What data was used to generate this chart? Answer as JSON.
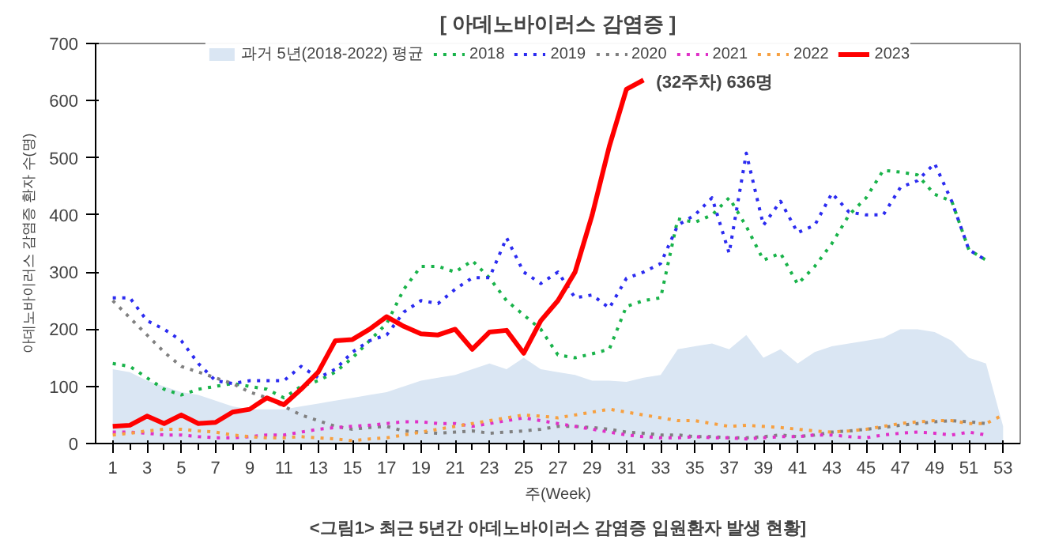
{
  "chart_data": {
    "type": "line",
    "title": "[ 아데노바이러스 감염증 ]",
    "ylabel": "아데노바이러스 감염증 환자 수(명)",
    "xlabel": "주(Week)",
    "annotations": [
      {
        "text": "(32주차) 636명",
        "x": 32,
        "y": 636
      },
      "<그림1> 최근 5년간 아데노바이러스 감염증 입원환자 발생 현황]"
    ],
    "x": [
      1,
      2,
      3,
      4,
      5,
      6,
      7,
      8,
      9,
      10,
      11,
      12,
      13,
      14,
      15,
      16,
      17,
      18,
      19,
      20,
      21,
      22,
      23,
      24,
      25,
      26,
      27,
      28,
      29,
      30,
      31,
      32,
      33,
      34,
      35,
      36,
      37,
      38,
      39,
      40,
      41,
      42,
      43,
      44,
      45,
      46,
      47,
      48,
      49,
      50,
      51,
      52,
      53
    ],
    "xlim": [
      0,
      54
    ],
    "xticks": [
      1,
      3,
      5,
      7,
      9,
      11,
      13,
      15,
      17,
      19,
      21,
      23,
      25,
      27,
      29,
      31,
      33,
      35,
      37,
      39,
      41,
      43,
      45,
      47,
      49,
      51,
      53
    ],
    "ylim": [
      0,
      700
    ],
    "yticks": [
      0,
      100,
      200,
      300,
      400,
      500,
      600,
      700
    ],
    "grid": false,
    "legend": "top",
    "series": [
      {
        "name": "과거 5년(2018-2022) 평균",
        "type": "area",
        "color": "#dae6f3",
        "values": [
          130,
          125,
          110,
          100,
          90,
          85,
          75,
          65,
          60,
          60,
          60,
          65,
          70,
          75,
          80,
          85,
          90,
          100,
          110,
          115,
          120,
          130,
          140,
          130,
          150,
          130,
          125,
          120,
          110,
          110,
          108,
          115,
          120,
          165,
          170,
          175,
          165,
          190,
          150,
          165,
          140,
          160,
          170,
          175,
          180,
          185,
          200,
          200,
          195,
          180,
          150,
          140,
          30
        ]
      },
      {
        "name": "2018",
        "color": "#19b34a",
        "line_style": "dotted",
        "values": [
          140,
          135,
          115,
          95,
          85,
          95,
          100,
          105,
          100,
          95,
          80,
          100,
          110,
          125,
          150,
          180,
          210,
          270,
          310,
          310,
          300,
          320,
          290,
          250,
          225,
          200,
          155,
          150,
          157,
          165,
          240,
          250,
          255,
          393,
          387,
          400,
          430,
          380,
          321,
          333,
          279,
          310,
          350,
          400,
          430,
          478,
          475,
          470,
          436,
          424,
          339,
          321,
          null
        ]
      },
      {
        "name": "2019",
        "color": "#2b2bf0",
        "line_style": "dotted",
        "values": [
          255,
          255,
          215,
          200,
          180,
          140,
          110,
          105,
          110,
          110,
          110,
          135,
          115,
          130,
          160,
          180,
          190,
          230,
          250,
          245,
          270,
          290,
          290,
          360,
          300,
          280,
          300,
          255,
          260,
          237,
          289,
          300,
          315,
          382,
          400,
          430,
          333,
          508,
          382,
          424,
          369,
          382,
          438,
          405,
          400,
          400,
          448,
          460,
          490,
          424,
          339,
          321,
          null
        ]
      },
      {
        "name": "2020",
        "color": "#808080",
        "line_style": "dotted",
        "values": [
          250,
          220,
          190,
          160,
          135,
          125,
          115,
          105,
          90,
          80,
          65,
          50,
          40,
          30,
          25,
          28,
          30,
          22,
          20,
          18,
          20,
          22,
          18,
          20,
          22,
          25,
          30,
          30,
          28,
          25,
          20,
          18,
          15,
          15,
          12,
          12,
          10,
          10,
          12,
          15,
          12,
          15,
          20,
          22,
          25,
          28,
          32,
          35,
          38,
          40,
          38,
          35,
          null
        ]
      },
      {
        "name": "2021",
        "color": "#e030c8",
        "line_style": "dotted",
        "values": [
          20,
          20,
          18,
          15,
          15,
          12,
          10,
          10,
          12,
          15,
          15,
          20,
          25,
          28,
          30,
          32,
          35,
          38,
          38,
          35,
          35,
          30,
          35,
          40,
          45,
          40,
          35,
          30,
          25,
          20,
          15,
          12,
          10,
          10,
          12,
          10,
          10,
          8,
          10,
          12,
          12,
          15,
          15,
          12,
          10,
          15,
          18,
          20,
          18,
          15,
          20,
          15,
          null
        ]
      },
      {
        "name": "2022",
        "color": "#f7a040",
        "line_style": "dotted",
        "values": [
          15,
          18,
          22,
          25,
          25,
          22,
          20,
          15,
          12,
          10,
          10,
          12,
          10,
          8,
          5,
          8,
          10,
          15,
          20,
          25,
          30,
          35,
          40,
          45,
          50,
          48,
          45,
          50,
          55,
          60,
          55,
          50,
          45,
          40,
          40,
          35,
          30,
          32,
          30,
          28,
          25,
          22,
          20,
          22,
          25,
          30,
          35,
          38,
          40,
          40,
          35,
          35,
          50
        ]
      },
      {
        "name": "2023",
        "color": "#ff0000",
        "line_style": "solid",
        "values": [
          30,
          32,
          48,
          35,
          50,
          35,
          37,
          55,
          60,
          80,
          68,
          95,
          125,
          180,
          182,
          200,
          222,
          205,
          192,
          190,
          200,
          165,
          195,
          198,
          158,
          215,
          250,
          300,
          400,
          520,
          620,
          636,
          null,
          null,
          null,
          null,
          null,
          null,
          null,
          null,
          null,
          null,
          null,
          null,
          null,
          null,
          null,
          null,
          null,
          null,
          null,
          null,
          null
        ]
      }
    ]
  }
}
